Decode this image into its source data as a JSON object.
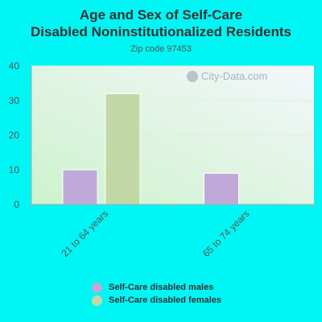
{
  "chart_data": {
    "type": "bar",
    "title": "Age and Sex of Self-Care Disabled Noninstitutionalized Residents",
    "subtitle": "Zip code 97453",
    "categories": [
      "21 to 64 years",
      "65 to 74 years"
    ],
    "series": [
      {
        "name": "Self-Care disabled males",
        "values": [
          10,
          9
        ],
        "color": "#c0a8d8"
      },
      {
        "name": "Self-Care disabled females",
        "values": [
          32,
          0
        ],
        "color": "#c2d8a6"
      }
    ],
    "ylim": [
      0,
      40
    ],
    "yticks": [
      "0",
      "10",
      "20",
      "30",
      "40"
    ],
    "grid": true,
    "legend": "bottom"
  },
  "watermark": "City-Data.com"
}
